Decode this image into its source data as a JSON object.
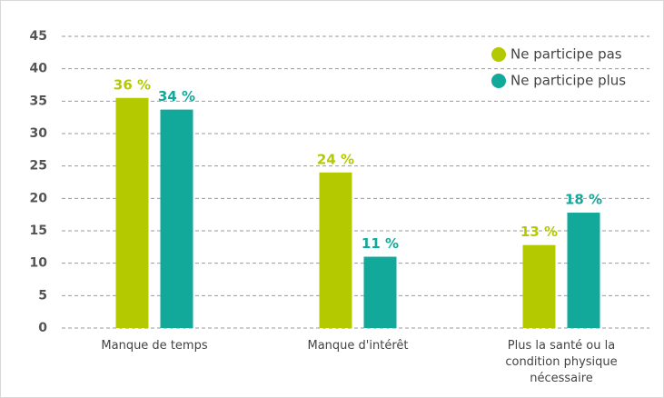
{
  "chart_data": {
    "type": "bar",
    "categories": [
      "Manque de temps",
      "Manque d'intérêt",
      "Plus la santé ou la condition physique nécessaire"
    ],
    "series": [
      {
        "name": "Ne participe pas",
        "color": "#b5c900",
        "values": [
          35.5,
          24,
          12.8
        ],
        "value_labels": [
          "36 %",
          "24 %",
          "13 %"
        ]
      },
      {
        "name": "Ne participe plus",
        "color": "#12a89a",
        "values": [
          33.7,
          11,
          17.8
        ],
        "value_labels": [
          "34 %",
          "11 %",
          "18 %"
        ]
      }
    ],
    "ylim": [
      0,
      45
    ],
    "yticks": [
      0,
      5,
      10,
      15,
      20,
      25,
      30,
      35,
      40,
      45
    ],
    "grid": true,
    "legend": "upper right"
  }
}
